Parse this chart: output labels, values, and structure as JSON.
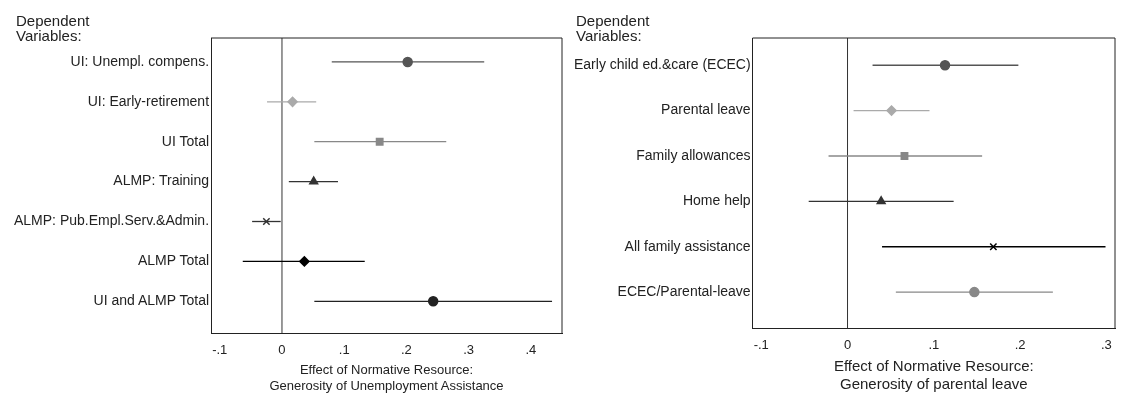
{
  "chart_data": [
    {
      "type": "scatter",
      "orientation": "horizontal",
      "ylabel": "Dependent\nVariables:",
      "xlabel": "Effect of Normative Resource:\nGenerosity of Unemployment Assistance",
      "categories": [
        "UI: Unempl. compens.",
        "UI: Early-retirement",
        "UI Total",
        "ALMP: Training",
        "ALMP: Pub.Empl.Serv.&Admin.",
        "ALMP Total",
        "UI and ALMP Total"
      ],
      "xlim": [
        -0.114,
        0.45
      ],
      "xticks": [
        {
          "value": -0.1,
          "label": "-.1"
        },
        0,
        {
          "value": 0.1,
          "label": ".1"
        },
        {
          "value": 0.2,
          "label": ".2"
        },
        {
          "value": 0.3,
          "label": ".3"
        },
        {
          "value": 0.4,
          "label": ".4"
        }
      ],
      "grid": false,
      "legend": false,
      "ref_lines": [
        {
          "axis": "x",
          "value": 0,
          "color": "#333333"
        }
      ],
      "series": [
        {
          "color": "#555555",
          "marker": "circle",
          "values": [
            0.202,
            null,
            null,
            null,
            null,
            null,
            null
          ],
          "errors": [
            [
              0.08,
              0.325
            ],
            null,
            null,
            null,
            null,
            null,
            null
          ]
        },
        {
          "color": "#aaaaaa",
          "marker": "diamond",
          "values": [
            null,
            0.017,
            null,
            null,
            null,
            null,
            null
          ],
          "errors": [
            null,
            [
              -0.024,
              0.055
            ],
            null,
            null,
            null,
            null,
            null
          ]
        },
        {
          "color": "#888888",
          "marker": "square",
          "values": [
            null,
            null,
            0.157,
            null,
            null,
            null,
            null
          ],
          "errors": [
            null,
            null,
            [
              0.052,
              0.264
            ],
            null,
            null,
            null,
            null
          ]
        },
        {
          "color": "#333333",
          "marker": "triangle",
          "values": [
            null,
            null,
            null,
            0.051,
            null,
            null,
            null
          ],
          "errors": [
            null,
            null,
            null,
            [
              0.011,
              0.09
            ],
            null,
            null,
            null
          ]
        },
        {
          "color": "#333333",
          "marker": "cross",
          "values": [
            null,
            null,
            null,
            null,
            -0.025,
            null,
            null
          ],
          "errors": [
            null,
            null,
            null,
            null,
            [
              -0.048,
              -0.002
            ],
            null,
            null
          ]
        },
        {
          "color": "#000000",
          "marker": "diamond",
          "values": [
            null,
            null,
            null,
            null,
            null,
            0.036,
            null
          ],
          "errors": [
            null,
            null,
            null,
            null,
            null,
            [
              -0.063,
              0.133
            ],
            null
          ]
        },
        {
          "color": "#222222",
          "marker": "circle",
          "values": [
            null,
            null,
            null,
            null,
            null,
            null,
            0.243
          ],
          "errors": [
            null,
            null,
            null,
            null,
            null,
            null,
            [
              0.052,
              0.434
            ]
          ]
        }
      ]
    },
    {
      "type": "scatter",
      "orientation": "horizontal",
      "ylabel": "Dependent\nVariables:",
      "xlabel": "Effect of Normative Resource:\nGenerosity of parental leave",
      "categories": [
        "Early child ed.&care (ECEC)",
        "Parental leave",
        "Family allowances",
        "Home help",
        "All family assistance",
        "ECEC/Parental-leave"
      ],
      "xlim": [
        -0.11,
        0.31
      ],
      "xticks": [
        {
          "value": -0.1,
          "label": "-.1"
        },
        0,
        {
          "value": 0.1,
          "label": ".1"
        },
        {
          "value": 0.2,
          "label": ".2"
        },
        {
          "value": 0.3,
          "label": ".3"
        }
      ],
      "grid": false,
      "legend": false,
      "ref_lines": [
        {
          "axis": "x",
          "value": 0,
          "color": "#333333"
        }
      ],
      "series": [
        {
          "color": "#555555",
          "marker": "circle",
          "values": [
            0.113,
            null,
            null,
            null,
            null,
            null
          ],
          "errors": [
            [
              0.029,
              0.198
            ],
            null,
            null,
            null,
            null,
            null
          ]
        },
        {
          "color": "#aaaaaa",
          "marker": "diamond",
          "values": [
            null,
            0.051,
            null,
            null,
            null,
            null
          ],
          "errors": [
            null,
            [
              0.007,
              0.095
            ],
            null,
            null,
            null,
            null
          ]
        },
        {
          "color": "#888888",
          "marker": "square",
          "values": [
            null,
            null,
            0.066,
            null,
            null,
            null
          ],
          "errors": [
            null,
            null,
            [
              -0.022,
              0.156
            ],
            null,
            null,
            null
          ]
        },
        {
          "color": "#333333",
          "marker": "triangle",
          "values": [
            null,
            null,
            null,
            0.039,
            null,
            null
          ],
          "errors": [
            null,
            null,
            null,
            [
              -0.045,
              0.123
            ],
            null,
            null
          ]
        },
        {
          "color": "#000000",
          "marker": "cross",
          "values": [
            null,
            null,
            null,
            null,
            0.169,
            null
          ],
          "errors": [
            null,
            null,
            null,
            null,
            [
              0.04,
              0.299
            ],
            null
          ]
        },
        {
          "color": "#888888",
          "marker": "circle",
          "values": [
            null,
            null,
            null,
            null,
            null,
            0.147
          ],
          "errors": [
            null,
            null,
            null,
            null,
            null,
            [
              0.056,
              0.238
            ]
          ]
        }
      ]
    }
  ]
}
